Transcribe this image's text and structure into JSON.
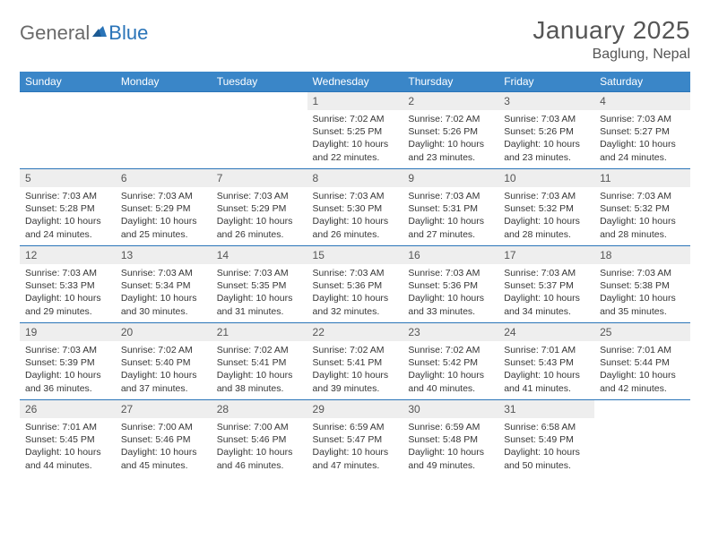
{
  "logo": {
    "word1": "General",
    "word2": "Blue"
  },
  "title": "January 2025",
  "location": "Baglung, Nepal",
  "colors": {
    "header_bg": "#3a86c8",
    "header_text": "#ffffff",
    "border": "#2a74b8",
    "daynum_bg": "#eeeeee",
    "text": "#363636",
    "title_text": "#555555"
  },
  "daysOfWeek": [
    "Sunday",
    "Monday",
    "Tuesday",
    "Wednesday",
    "Thursday",
    "Friday",
    "Saturday"
  ],
  "weeks": [
    [
      null,
      null,
      null,
      {
        "n": "1",
        "sr": "Sunrise: 7:02 AM",
        "ss": "Sunset: 5:25 PM",
        "d1": "Daylight: 10 hours",
        "d2": "and 22 minutes."
      },
      {
        "n": "2",
        "sr": "Sunrise: 7:02 AM",
        "ss": "Sunset: 5:26 PM",
        "d1": "Daylight: 10 hours",
        "d2": "and 23 minutes."
      },
      {
        "n": "3",
        "sr": "Sunrise: 7:03 AM",
        "ss": "Sunset: 5:26 PM",
        "d1": "Daylight: 10 hours",
        "d2": "and 23 minutes."
      },
      {
        "n": "4",
        "sr": "Sunrise: 7:03 AM",
        "ss": "Sunset: 5:27 PM",
        "d1": "Daylight: 10 hours",
        "d2": "and 24 minutes."
      }
    ],
    [
      {
        "n": "5",
        "sr": "Sunrise: 7:03 AM",
        "ss": "Sunset: 5:28 PM",
        "d1": "Daylight: 10 hours",
        "d2": "and 24 minutes."
      },
      {
        "n": "6",
        "sr": "Sunrise: 7:03 AM",
        "ss": "Sunset: 5:29 PM",
        "d1": "Daylight: 10 hours",
        "d2": "and 25 minutes."
      },
      {
        "n": "7",
        "sr": "Sunrise: 7:03 AM",
        "ss": "Sunset: 5:29 PM",
        "d1": "Daylight: 10 hours",
        "d2": "and 26 minutes."
      },
      {
        "n": "8",
        "sr": "Sunrise: 7:03 AM",
        "ss": "Sunset: 5:30 PM",
        "d1": "Daylight: 10 hours",
        "d2": "and 26 minutes."
      },
      {
        "n": "9",
        "sr": "Sunrise: 7:03 AM",
        "ss": "Sunset: 5:31 PM",
        "d1": "Daylight: 10 hours",
        "d2": "and 27 minutes."
      },
      {
        "n": "10",
        "sr": "Sunrise: 7:03 AM",
        "ss": "Sunset: 5:32 PM",
        "d1": "Daylight: 10 hours",
        "d2": "and 28 minutes."
      },
      {
        "n": "11",
        "sr": "Sunrise: 7:03 AM",
        "ss": "Sunset: 5:32 PM",
        "d1": "Daylight: 10 hours",
        "d2": "and 28 minutes."
      }
    ],
    [
      {
        "n": "12",
        "sr": "Sunrise: 7:03 AM",
        "ss": "Sunset: 5:33 PM",
        "d1": "Daylight: 10 hours",
        "d2": "and 29 minutes."
      },
      {
        "n": "13",
        "sr": "Sunrise: 7:03 AM",
        "ss": "Sunset: 5:34 PM",
        "d1": "Daylight: 10 hours",
        "d2": "and 30 minutes."
      },
      {
        "n": "14",
        "sr": "Sunrise: 7:03 AM",
        "ss": "Sunset: 5:35 PM",
        "d1": "Daylight: 10 hours",
        "d2": "and 31 minutes."
      },
      {
        "n": "15",
        "sr": "Sunrise: 7:03 AM",
        "ss": "Sunset: 5:36 PM",
        "d1": "Daylight: 10 hours",
        "d2": "and 32 minutes."
      },
      {
        "n": "16",
        "sr": "Sunrise: 7:03 AM",
        "ss": "Sunset: 5:36 PM",
        "d1": "Daylight: 10 hours",
        "d2": "and 33 minutes."
      },
      {
        "n": "17",
        "sr": "Sunrise: 7:03 AM",
        "ss": "Sunset: 5:37 PM",
        "d1": "Daylight: 10 hours",
        "d2": "and 34 minutes."
      },
      {
        "n": "18",
        "sr": "Sunrise: 7:03 AM",
        "ss": "Sunset: 5:38 PM",
        "d1": "Daylight: 10 hours",
        "d2": "and 35 minutes."
      }
    ],
    [
      {
        "n": "19",
        "sr": "Sunrise: 7:03 AM",
        "ss": "Sunset: 5:39 PM",
        "d1": "Daylight: 10 hours",
        "d2": "and 36 minutes."
      },
      {
        "n": "20",
        "sr": "Sunrise: 7:02 AM",
        "ss": "Sunset: 5:40 PM",
        "d1": "Daylight: 10 hours",
        "d2": "and 37 minutes."
      },
      {
        "n": "21",
        "sr": "Sunrise: 7:02 AM",
        "ss": "Sunset: 5:41 PM",
        "d1": "Daylight: 10 hours",
        "d2": "and 38 minutes."
      },
      {
        "n": "22",
        "sr": "Sunrise: 7:02 AM",
        "ss": "Sunset: 5:41 PM",
        "d1": "Daylight: 10 hours",
        "d2": "and 39 minutes."
      },
      {
        "n": "23",
        "sr": "Sunrise: 7:02 AM",
        "ss": "Sunset: 5:42 PM",
        "d1": "Daylight: 10 hours",
        "d2": "and 40 minutes."
      },
      {
        "n": "24",
        "sr": "Sunrise: 7:01 AM",
        "ss": "Sunset: 5:43 PM",
        "d1": "Daylight: 10 hours",
        "d2": "and 41 minutes."
      },
      {
        "n": "25",
        "sr": "Sunrise: 7:01 AM",
        "ss": "Sunset: 5:44 PM",
        "d1": "Daylight: 10 hours",
        "d2": "and 42 minutes."
      }
    ],
    [
      {
        "n": "26",
        "sr": "Sunrise: 7:01 AM",
        "ss": "Sunset: 5:45 PM",
        "d1": "Daylight: 10 hours",
        "d2": "and 44 minutes."
      },
      {
        "n": "27",
        "sr": "Sunrise: 7:00 AM",
        "ss": "Sunset: 5:46 PM",
        "d1": "Daylight: 10 hours",
        "d2": "and 45 minutes."
      },
      {
        "n": "28",
        "sr": "Sunrise: 7:00 AM",
        "ss": "Sunset: 5:46 PM",
        "d1": "Daylight: 10 hours",
        "d2": "and 46 minutes."
      },
      {
        "n": "29",
        "sr": "Sunrise: 6:59 AM",
        "ss": "Sunset: 5:47 PM",
        "d1": "Daylight: 10 hours",
        "d2": "and 47 minutes."
      },
      {
        "n": "30",
        "sr": "Sunrise: 6:59 AM",
        "ss": "Sunset: 5:48 PM",
        "d1": "Daylight: 10 hours",
        "d2": "and 49 minutes."
      },
      {
        "n": "31",
        "sr": "Sunrise: 6:58 AM",
        "ss": "Sunset: 5:49 PM",
        "d1": "Daylight: 10 hours",
        "d2": "and 50 minutes."
      },
      null
    ]
  ]
}
